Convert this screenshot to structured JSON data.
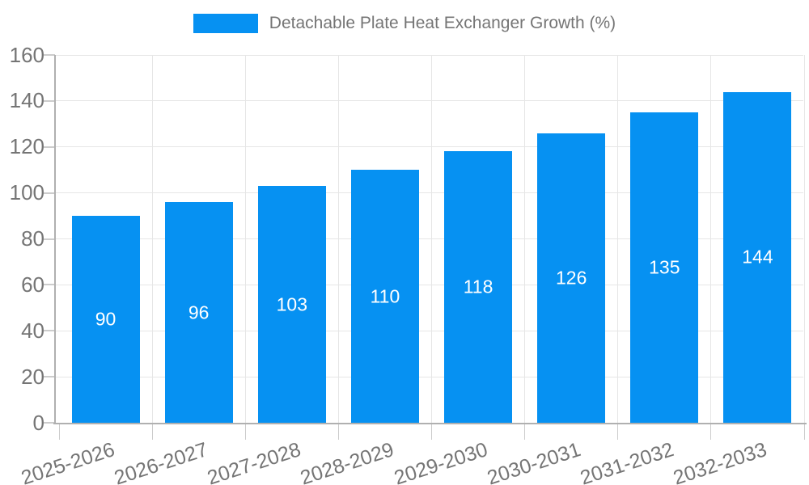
{
  "chart_data": {
    "type": "bar",
    "title": "Detachable Plate Heat Exchanger Growth (%)",
    "legend": {
      "position": "top-center",
      "entries": [
        {
          "label": "Detachable Plate Heat Exchanger Growth (%)",
          "color": "#0691f2"
        }
      ]
    },
    "categories": [
      "2025-2026",
      "2026-2027",
      "2027-2028",
      "2028-2029",
      "2029-2030",
      "2030-2031",
      "2031-2032",
      "2032-2033"
    ],
    "series": [
      {
        "name": "Detachable Plate Heat Exchanger Growth (%)",
        "values": [
          90,
          96,
          103,
          110,
          118,
          126,
          135,
          144
        ]
      }
    ],
    "value_labels": {
      "visible": true,
      "position": "inside-center",
      "color": "#ffffff"
    },
    "xlabel": "",
    "ylabel": "",
    "ylim": [
      0,
      160
    ],
    "yticks": [
      0,
      20,
      40,
      60,
      80,
      100,
      120,
      140,
      160
    ],
    "x_tick_rotation_deg": -18,
    "grid": "on",
    "colors": {
      "bar": "#0691f2",
      "axis_text": "#757575",
      "grid_line": "#e6e6e6",
      "axis_line": "#b0b0b0",
      "tick_mark": "#cccccc",
      "background": "#ffffff"
    }
  }
}
